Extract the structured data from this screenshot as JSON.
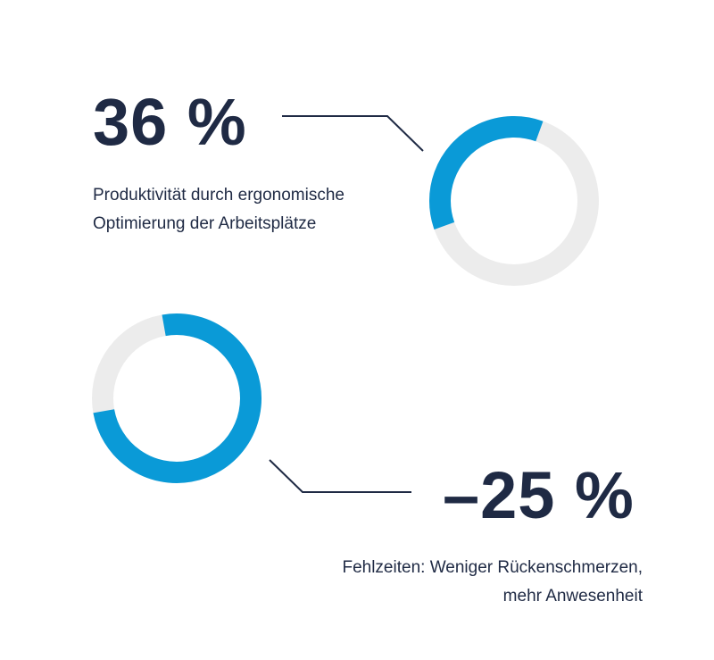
{
  "colors": {
    "accent": "#0a9ad7",
    "track": "#ececec",
    "text": "#1f2a44"
  },
  "stats": [
    {
      "value": "36 %",
      "description_lines": [
        "Produktivität durch ergonomische",
        "Optimierung der Arbeitsplätze"
      ]
    },
    {
      "value": "–25 %",
      "description_lines": [
        "Fehlzeiten: Weniger Rückenschmerzen,",
        "mehr Anwesenheit"
      ]
    }
  ],
  "chart_data": [
    {
      "type": "pie",
      "variant": "donut",
      "values": [
        36,
        64
      ]
    },
    {
      "type": "pie",
      "variant": "donut",
      "values": [
        75,
        25
      ]
    }
  ]
}
